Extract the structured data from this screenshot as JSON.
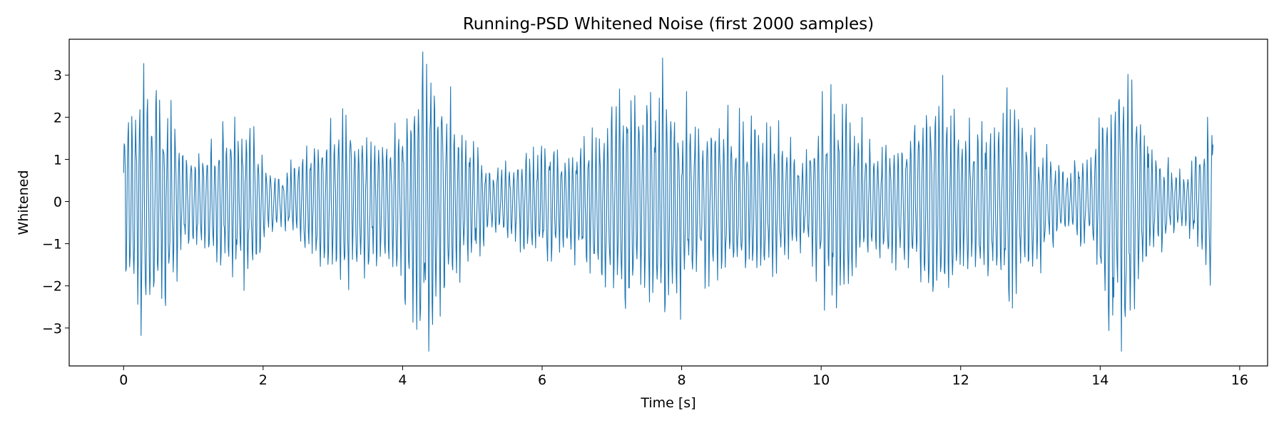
{
  "chart_data": {
    "type": "line",
    "title": "Running-PSD Whitened Noise (first 2000 samples)",
    "xlabel": "Time [s]",
    "ylabel": "Whitened",
    "xlim": [
      -0.78,
      16.4
    ],
    "ylim": [
      -3.9,
      3.85
    ],
    "grid": false,
    "legend": "none",
    "series_color": "#1f77b4",
    "x_ticks": [
      0,
      2,
      4,
      6,
      8,
      10,
      12,
      14,
      16
    ],
    "x_tick_labels": [
      "0",
      "2",
      "4",
      "6",
      "8",
      "10",
      "12",
      "14",
      "16"
    ],
    "y_ticks": [
      -3,
      -2,
      -1,
      0,
      1,
      2,
      3
    ],
    "y_tick_labels": [
      "−3",
      "−2",
      "−1",
      "0",
      "1",
      "2",
      "3"
    ],
    "series": [
      {
        "name": "whitened",
        "x_start": 0.0,
        "x_step": 0.0078125,
        "n_samples": 2000,
        "envelope_t": [
          0.0,
          0.12,
          0.25,
          0.45,
          0.65,
          0.85,
          1.1,
          1.4,
          1.65,
          1.85,
          2.05,
          2.3,
          2.55,
          2.9,
          3.2,
          3.5,
          3.8,
          4.1,
          4.3,
          4.45,
          4.7,
          5.0,
          5.3,
          5.6,
          6.0,
          6.4,
          6.8,
          7.2,
          7.5,
          7.7,
          8.0,
          8.3,
          8.6,
          9.0,
          9.4,
          9.8,
          10.1,
          10.4,
          10.8,
          11.2,
          11.6,
          11.75,
          12.0,
          12.4,
          12.75,
          13.1,
          13.5,
          13.9,
          14.1,
          14.35,
          14.6,
          14.9,
          15.2,
          15.45,
          15.6
        ],
        "envelope_a": [
          2.3,
          2.4,
          2.9,
          2.9,
          2.3,
          1.3,
          1.2,
          1.6,
          2.0,
          1.9,
          0.9,
          0.6,
          1.2,
          1.7,
          2.2,
          1.6,
          1.5,
          2.6,
          3.5,
          3.2,
          2.2,
          1.4,
          0.8,
          1.0,
          1.4,
          1.2,
          1.7,
          2.6,
          2.4,
          3.1,
          2.3,
          1.9,
          2.0,
          2.0,
          1.6,
          1.2,
          2.6,
          2.2,
          1.3,
          1.5,
          2.8,
          2.7,
          2.0,
          1.8,
          2.6,
          1.5,
          0.7,
          1.2,
          2.9,
          3.4,
          2.0,
          1.0,
          0.6,
          1.4,
          2.1
        ],
        "dominant_freq_hz": 17.5,
        "first_value": 0.68,
        "last_value": 1.35,
        "min": -3.55,
        "max": 3.55
      }
    ]
  }
}
